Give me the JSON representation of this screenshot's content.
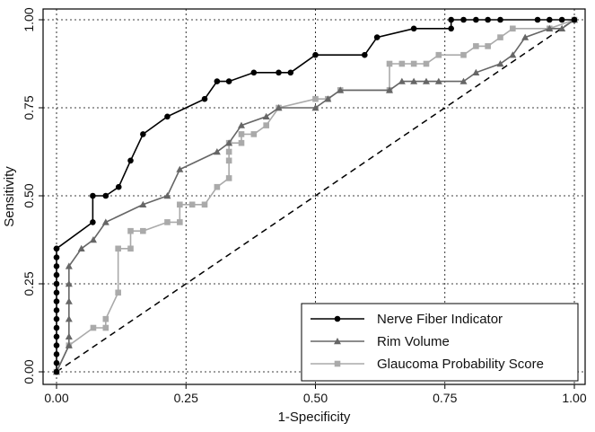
{
  "chart_data": {
    "type": "line",
    "title": "",
    "xlabel": "1-Specificity",
    "ylabel": "Sensitivity",
    "xlim": [
      0,
      1
    ],
    "ylim": [
      0,
      1
    ],
    "xticks": [
      "0.00",
      "0.25",
      "0.50",
      "0.75",
      "1.00"
    ],
    "yticks": [
      "0.00",
      "0.25",
      "0.50",
      "0.75",
      "1.00"
    ],
    "grid": true,
    "legend_position": "bottom-right",
    "reference_line": {
      "x": [
        0,
        1
      ],
      "y": [
        0,
        1
      ],
      "style": "dashed"
    },
    "series": [
      {
        "name": "Nerve Fiber Indicator",
        "marker": "circle",
        "color": "#000000",
        "x": [
          0.0,
          0.0,
          0.0,
          0.0,
          0.0,
          0.0,
          0.0,
          0.0,
          0.0,
          0.0,
          0.0,
          0.0,
          0.0,
          0.0,
          0.0,
          0.0,
          0.07,
          0.07,
          0.095,
          0.12,
          0.143,
          0.167,
          0.214,
          0.286,
          0.31,
          0.333,
          0.381,
          0.429,
          0.452,
          0.5,
          0.595,
          0.619,
          0.69,
          0.762,
          0.762,
          0.786,
          0.81,
          0.833,
          0.857,
          0.929,
          0.952,
          0.976,
          1.0
        ],
        "y": [
          0.0,
          0.025,
          0.05,
          0.075,
          0.1,
          0.125,
          0.15,
          0.175,
          0.2,
          0.225,
          0.25,
          0.275,
          0.3,
          0.325,
          0.35,
          0.35,
          0.425,
          0.5,
          0.5,
          0.525,
          0.6,
          0.675,
          0.725,
          0.775,
          0.825,
          0.825,
          0.85,
          0.85,
          0.85,
          0.9,
          0.9,
          0.95,
          0.975,
          0.975,
          1.0,
          1.0,
          1.0,
          1.0,
          1.0,
          1.0,
          1.0,
          1.0,
          1.0
        ]
      },
      {
        "name": "Rim Volume",
        "marker": "triangle",
        "color": "#666666",
        "x": [
          0.0,
          0.024,
          0.024,
          0.024,
          0.024,
          0.024,
          0.024,
          0.048,
          0.071,
          0.095,
          0.167,
          0.214,
          0.238,
          0.31,
          0.333,
          0.357,
          0.405,
          0.429,
          0.5,
          0.524,
          0.548,
          0.643,
          0.667,
          0.69,
          0.714,
          0.738,
          0.786,
          0.81,
          0.857,
          0.881,
          0.905,
          0.952,
          0.976,
          1.0
        ],
        "y": [
          0.0,
          0.075,
          0.1,
          0.15,
          0.2,
          0.25,
          0.3,
          0.35,
          0.375,
          0.425,
          0.475,
          0.5,
          0.575,
          0.625,
          0.65,
          0.7,
          0.725,
          0.75,
          0.75,
          0.775,
          0.8,
          0.8,
          0.825,
          0.825,
          0.825,
          0.825,
          0.825,
          0.85,
          0.875,
          0.9,
          0.95,
          0.975,
          0.975,
          1.0
        ]
      },
      {
        "name": "Glaucoma Probability Score",
        "marker": "square",
        "color": "#aaaaaa",
        "x": [
          0.0,
          0.024,
          0.071,
          0.095,
          0.095,
          0.119,
          0.119,
          0.143,
          0.143,
          0.167,
          0.214,
          0.238,
          0.238,
          0.262,
          0.286,
          0.31,
          0.333,
          0.333,
          0.333,
          0.333,
          0.357,
          0.357,
          0.381,
          0.405,
          0.429,
          0.5,
          0.524,
          0.548,
          0.643,
          0.643,
          0.667,
          0.69,
          0.714,
          0.738,
          0.786,
          0.81,
          0.833,
          0.857,
          0.881,
          0.952,
          1.0
        ],
        "y": [
          0.0,
          0.075,
          0.125,
          0.125,
          0.15,
          0.225,
          0.35,
          0.35,
          0.4,
          0.4,
          0.425,
          0.425,
          0.475,
          0.475,
          0.475,
          0.525,
          0.55,
          0.6,
          0.625,
          0.65,
          0.65,
          0.675,
          0.675,
          0.7,
          0.75,
          0.775,
          0.775,
          0.8,
          0.8,
          0.875,
          0.875,
          0.875,
          0.875,
          0.9,
          0.9,
          0.925,
          0.925,
          0.95,
          0.975,
          0.975,
          1.0
        ]
      }
    ]
  }
}
